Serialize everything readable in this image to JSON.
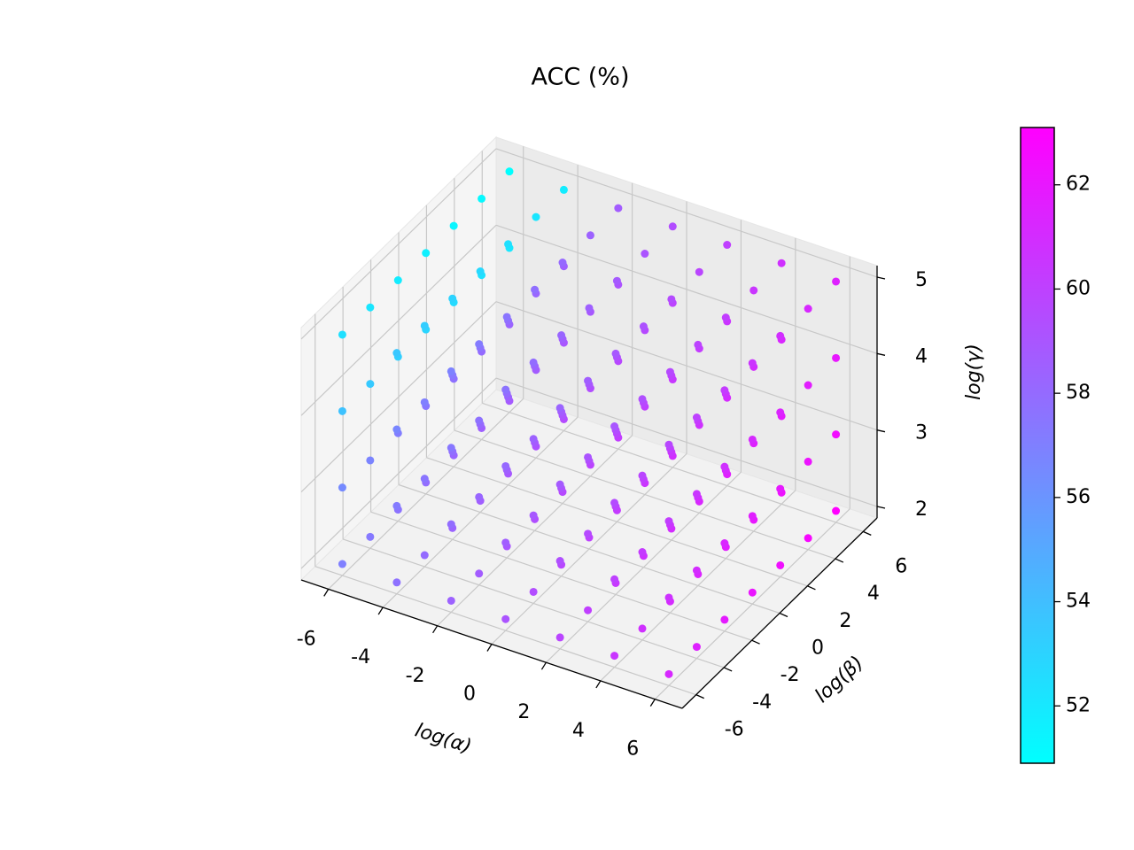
{
  "chart_data": {
    "type": "scatter3d",
    "title": "ACC (%)",
    "xlabel": "log(α)",
    "ylabel": "log(β)",
    "zlabel": "log(γ)",
    "alpha": [
      -6,
      -4,
      -2,
      0,
      2,
      4,
      6
    ],
    "beta": [
      -6,
      -4,
      -2,
      0,
      2,
      4,
      6
    ],
    "gamma": [
      2,
      3,
      4,
      5
    ],
    "values": [
      [
        [
          57.0,
          57.7,
          58.4,
          59.1,
          59.8,
          60.5,
          61.2
        ],
        [
          57.3,
          58.0,
          58.7,
          59.4,
          60.1,
          60.8,
          61.5
        ],
        [
          57.6,
          58.3,
          59.0,
          59.7,
          60.4,
          61.1,
          61.8
        ],
        [
          57.9,
          58.6,
          59.3,
          60.0,
          60.7,
          61.4,
          62.1
        ],
        [
          58.2,
          58.9,
          59.6,
          60.3,
          61.0,
          61.7,
          62.4
        ],
        [
          58.5,
          59.2,
          59.9,
          60.6,
          61.3,
          62.0,
          62.7
        ],
        [
          58.8,
          59.5,
          60.2,
          60.9,
          61.6,
          62.3,
          63.1
        ]
      ],
      [
        [
          56.5,
          57.2,
          57.9,
          58.6,
          59.3,
          60.0,
          60.7
        ],
        [
          56.8,
          57.5,
          58.2,
          58.9,
          59.6,
          60.3,
          61.0
        ],
        [
          57.1,
          57.8,
          58.5,
          59.2,
          59.9,
          60.6,
          61.3
        ],
        [
          57.4,
          58.1,
          58.8,
          59.5,
          60.2,
          60.9,
          61.6
        ],
        [
          57.7,
          58.4,
          59.1,
          59.8,
          60.5,
          61.2,
          61.9
        ],
        [
          58.0,
          58.7,
          59.4,
          60.1,
          60.8,
          61.5,
          62.2
        ],
        [
          58.3,
          59.0,
          59.7,
          60.4,
          61.1,
          61.8,
          62.5
        ]
      ],
      [
        [
          53.8,
          56.7,
          57.4,
          58.1,
          58.8,
          59.5,
          60.2
        ],
        [
          53.5,
          57.0,
          57.7,
          58.4,
          59.1,
          59.8,
          60.5
        ],
        [
          53.2,
          57.3,
          58.0,
          58.7,
          59.4,
          60.1,
          60.8
        ],
        [
          52.9,
          57.6,
          58.3,
          59.0,
          59.7,
          60.4,
          61.1
        ],
        [
          52.6,
          57.9,
          58.6,
          59.3,
          60.0,
          60.7,
          61.4
        ],
        [
          52.3,
          58.2,
          58.9,
          59.6,
          60.3,
          61.0,
          61.7
        ],
        [
          52.0,
          58.5,
          59.2,
          59.9,
          60.6,
          61.3,
          62.0
        ]
      ],
      [
        [
          52.4,
          53.6,
          56.9,
          57.6,
          58.3,
          59.0,
          59.7
        ],
        [
          52.1,
          53.3,
          57.2,
          57.9,
          58.6,
          59.3,
          60.0
        ],
        [
          51.8,
          53.0,
          57.5,
          58.2,
          58.9,
          59.6,
          60.3
        ],
        [
          51.6,
          52.7,
          57.8,
          58.5,
          59.2,
          59.9,
          60.6
        ],
        [
          51.4,
          52.4,
          58.1,
          58.8,
          59.5,
          60.2,
          60.9
        ],
        [
          51.2,
          52.1,
          58.4,
          59.1,
          59.8,
          60.5,
          61.2
        ],
        [
          50.9,
          51.8,
          58.7,
          59.4,
          60.1,
          60.8,
          61.5
        ]
      ]
    ],
    "xlim": [
      -7,
      7
    ],
    "ylim": [
      -7,
      7
    ],
    "zlim": [
      1.85,
      5.15
    ],
    "xticks": [
      -6,
      -4,
      -2,
      0,
      2,
      4,
      6
    ],
    "yticks": [
      -6,
      -4,
      -2,
      0,
      2,
      4,
      6
    ],
    "zticks": [
      2,
      3,
      4,
      5
    ],
    "colormap": "cool",
    "clim": [
      50.9,
      63.1
    ],
    "cticks": [
      52,
      54,
      56,
      58,
      60,
      62
    ],
    "grid": true
  }
}
